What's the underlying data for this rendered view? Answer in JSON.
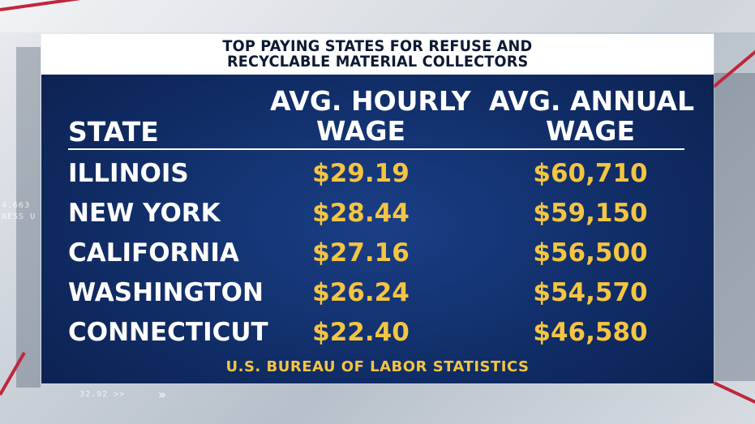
{
  "title": {
    "line1": "TOP PAYING STATES FOR REFUSE AND",
    "line2": "RECYCLABLE MATERIAL COLLECTORS"
  },
  "columns": {
    "state": "STATE",
    "hourly_line1": "AVG. HOURLY",
    "hourly_line2": "WAGE",
    "annual_line1": "AVG. ANNUAL",
    "annual_line2": "WAGE"
  },
  "rows": [
    {
      "state": "ILLINOIS",
      "hourly": "$29.19",
      "annual": "$60,710"
    },
    {
      "state": "NEW YORK",
      "hourly": "$28.44",
      "annual": "$59,150"
    },
    {
      "state": "CALIFORNIA",
      "hourly": "$27.16",
      "annual": "$56,500"
    },
    {
      "state": "WASHINGTON",
      "hourly": "$26.24",
      "annual": "$54,570"
    },
    {
      "state": "CONNECTICUT",
      "hourly": "$22.40",
      "annual": "$46,580"
    }
  ],
  "source": "U.S. BUREAU OF LABOR STATISTICS",
  "background": {
    "ticker_left_1": "4.663",
    "ticker_left_2": "NESS U",
    "ticker_bottom": "32.92 >>"
  },
  "colors": {
    "card_blue": "#12306c",
    "value_yellow": "#f4c542",
    "accent_red": "#c0263a"
  }
}
